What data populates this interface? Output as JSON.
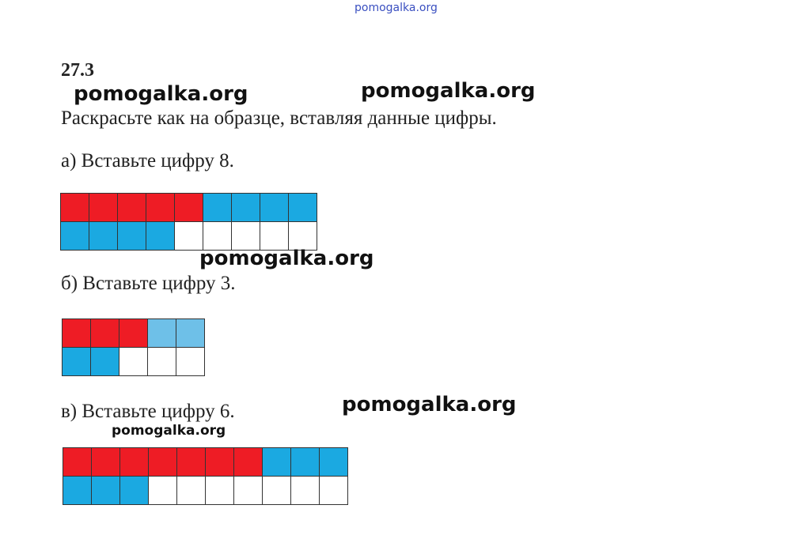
{
  "watermarks": [
    "pomogalka.org",
    "pomogalka.org",
    "pomogalka.org",
    "pomogalka.org",
    "pomogalka.org",
    "pomogalka.org"
  ],
  "title": "27.3",
  "instruction": "Раскрасьте как на образце, вставляя данные цифры.",
  "tasks": [
    {
      "label": "а) Вставьте цифру 8.",
      "grid": [
        [
          "#ee1c25",
          "#ee1c25",
          "#ee1c25",
          "#ee1c25",
          "#ee1c25",
          "#1ba9e1",
          "#1ba9e1",
          "#1ba9e1",
          "#1ba9e1"
        ],
        [
          "#1ba9e1",
          "#1ba9e1",
          "#1ba9e1",
          "#1ba9e1",
          "#ffffff",
          "#ffffff",
          "#ffffff",
          "#ffffff",
          "#ffffff"
        ]
      ]
    },
    {
      "label": "б) Вставьте цифру 3.",
      "grid": [
        [
          "#ee1c25",
          "#ee1c25",
          "#ee1c25",
          "#6ec0e8",
          "#6ec0e8"
        ],
        [
          "#1ba9e1",
          "#1ba9e1",
          "#ffffff",
          "#ffffff",
          "#ffffff"
        ]
      ]
    },
    {
      "label": "в) Вставьте цифру 6.",
      "grid": [
        [
          "#ee1c25",
          "#ee1c25",
          "#ee1c25",
          "#ee1c25",
          "#ee1c25",
          "#ee1c25",
          "#ee1c25",
          "#1ba9e1",
          "#1ba9e1",
          "#1ba9e1"
        ],
        [
          "#1ba9e1",
          "#1ba9e1",
          "#1ba9e1",
          "#ffffff",
          "#ffffff",
          "#ffffff",
          "#ffffff",
          "#ffffff",
          "#ffffff",
          "#ffffff"
        ]
      ]
    }
  ]
}
